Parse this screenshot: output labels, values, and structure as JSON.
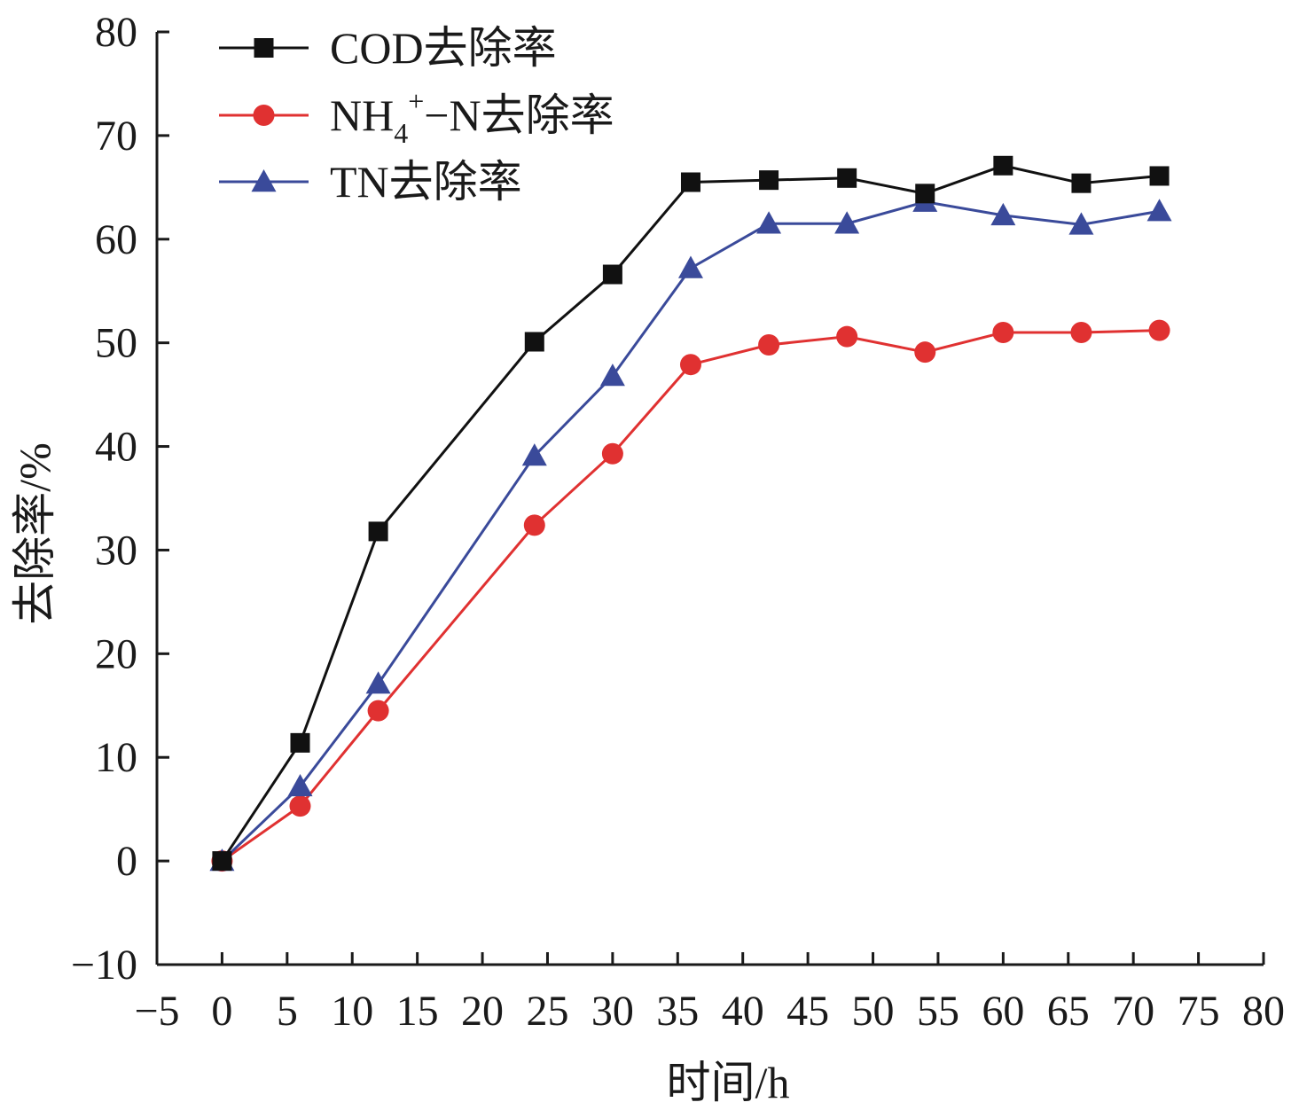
{
  "chart_data": {
    "type": "line",
    "title": "",
    "xlabel": "时间/h",
    "ylabel": "去除率/%",
    "xlim": [
      -5,
      80
    ],
    "ylim": [
      -10,
      80
    ],
    "xticks": [
      -5,
      0,
      5,
      10,
      15,
      20,
      25,
      30,
      35,
      40,
      45,
      50,
      55,
      60,
      65,
      70,
      75,
      80
    ],
    "yticks": [
      -10,
      0,
      10,
      20,
      30,
      40,
      50,
      60,
      70,
      80
    ],
    "grid": false,
    "legend_position": "top-left",
    "x": [
      0,
      6,
      12,
      24,
      30,
      36,
      42,
      48,
      54,
      60,
      66,
      72
    ],
    "series": [
      {
        "name": "COD去除率",
        "color": "#111111",
        "marker": "square",
        "values": [
          0,
          11.4,
          31.8,
          50.1,
          56.6,
          65.5,
          65.7,
          65.9,
          64.4,
          67.1,
          65.4,
          66.1
        ]
      },
      {
        "name": "NH4+-N去除率",
        "name_parts": {
          "base": "NH",
          "sub": "4",
          "sup": "+",
          "rest": "−N去除率"
        },
        "color": "#e03131",
        "marker": "circle",
        "values": [
          0,
          5.3,
          14.5,
          32.4,
          39.3,
          47.9,
          49.8,
          50.6,
          49.1,
          51.0,
          51.0,
          51.2
        ]
      },
      {
        "name": "TN去除率",
        "color": "#3a4a9a",
        "marker": "triangle",
        "values": [
          0,
          7.2,
          17.1,
          39.1,
          46.8,
          57.2,
          61.5,
          61.5,
          63.6,
          62.3,
          61.4,
          62.7
        ]
      }
    ]
  }
}
